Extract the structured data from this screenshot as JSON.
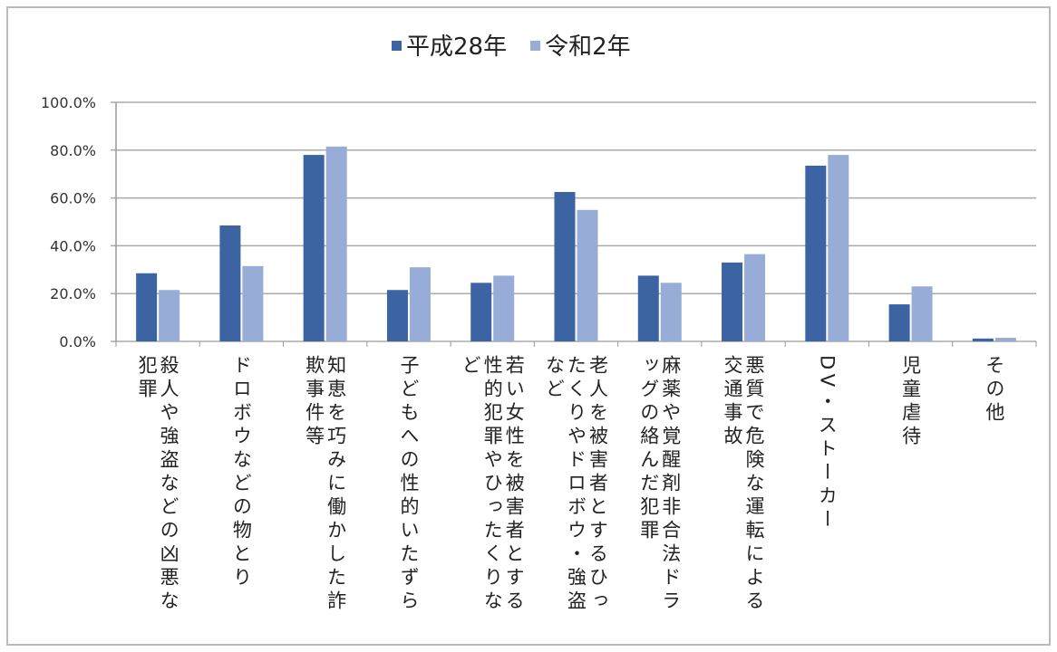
{
  "chart_data": {
    "type": "bar",
    "categories": [
      "殺人や強盗などの凶悪な犯罪",
      "ドロボウなどの物とり",
      "知恵を巧みに働かした詐欺事件等",
      "子どもへの性的いたずら",
      "若い女性を被害者とする性的犯罪やひったくりなど",
      "老人を被害者とするひったくりやドロボウ・強盗など",
      "麻薬や覚醒剤非合法ドラッグの絡んだ犯罪",
      "悪質で危険な運転による交通事故",
      "DV・ストーカー",
      "児童虐待",
      "その他"
    ],
    "series": [
      {
        "name": "平成28年",
        "color": "#3c64a2",
        "values": [
          28.5,
          48.5,
          78,
          21.5,
          24.5,
          62.5,
          27.5,
          33,
          73.5,
          15.5,
          1.2
        ]
      },
      {
        "name": "令和2年",
        "color": "#97acd6",
        "values": [
          21.5,
          31.5,
          81.5,
          31,
          27.5,
          55,
          24.5,
          36.5,
          78,
          23,
          1.5
        ]
      }
    ],
    "ylim": [
      0,
      100
    ],
    "yticks": [
      {
        "value": 0,
        "label": "0.0%"
      },
      {
        "value": 20,
        "label": "20.0%"
      },
      {
        "value": 40,
        "label": "40.0%"
      },
      {
        "value": 60,
        "label": "60.0%"
      },
      {
        "value": 80,
        "label": "80.0%"
      },
      {
        "value": 100,
        "label": "100.0%"
      }
    ],
    "grid": true,
    "legend": "top"
  }
}
